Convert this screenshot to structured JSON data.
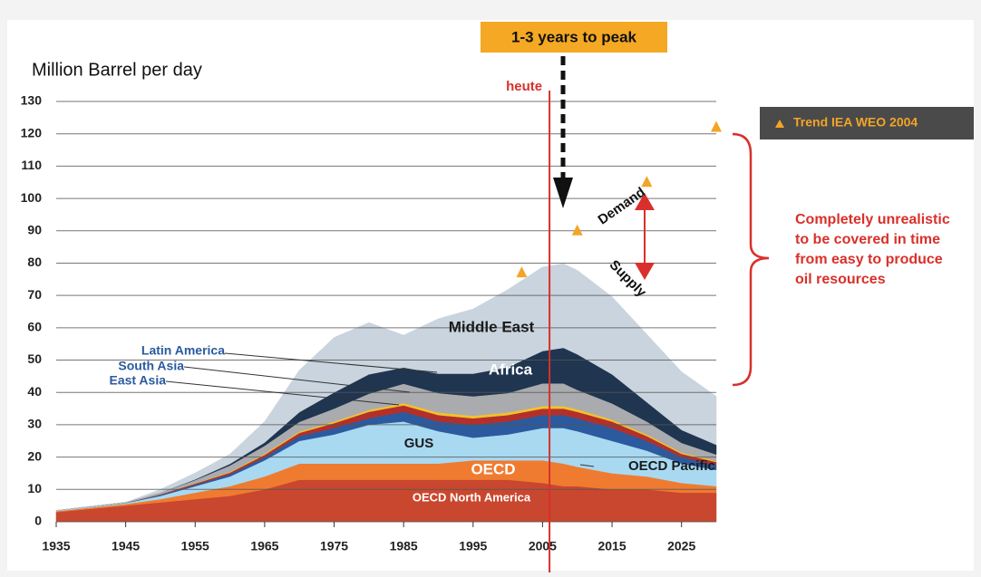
{
  "chart_data": {
    "type": "stacked-area",
    "y_label": "Million Barrel per day",
    "x": [
      1935,
      1945,
      1950,
      1955,
      1960,
      1965,
      1970,
      1975,
      1980,
      1985,
      1990,
      1995,
      2000,
      2005,
      2008,
      2010,
      2015,
      2020,
      2025,
      2030
    ],
    "series": [
      {
        "name": "OECD North America",
        "color": "#c9472e",
        "values": [
          3,
          5,
          6,
          7,
          8,
          10,
          13,
          13,
          13,
          13,
          13,
          13,
          13,
          12,
          11,
          11,
          10,
          10,
          9,
          9
        ]
      },
      {
        "name": "OECD",
        "color": "#ef7b31",
        "values": [
          0.3,
          0.5,
          1,
          2,
          3,
          4,
          5,
          5,
          5,
          5,
          5,
          6,
          6,
          7,
          7,
          6,
          5,
          4,
          3,
          2
        ]
      },
      {
        "name": "GUS",
        "color": "#a8d9f1",
        "values": [
          0.2,
          0.3,
          1,
          2,
          3,
          5,
          7,
          9,
          12,
          13,
          10,
          7,
          8,
          10,
          11,
          11,
          10,
          8,
          6,
          5
        ]
      },
      {
        "name": "OECD Pacific",
        "color": "#2b5a9f",
        "values": [
          0,
          0.1,
          0.3,
          0.5,
          0.7,
          1,
          1.5,
          2,
          2,
          3,
          3,
          4,
          4,
          4,
          4,
          4,
          4,
          3,
          2,
          1.5
        ]
      },
      {
        "name": "East Asia",
        "color": "#b3302a",
        "values": [
          0,
          0,
          0.2,
          0.3,
          0.5,
          0.7,
          1,
          1.5,
          2,
          2,
          2,
          2,
          2,
          2,
          2,
          2,
          2,
          1.5,
          1,
          1
        ]
      },
      {
        "name": "South Asia",
        "color": "#f2c22a",
        "values": [
          0,
          0,
          0,
          0.1,
          0.2,
          0.3,
          0.4,
          0.5,
          0.6,
          0.7,
          0.8,
          0.8,
          0.8,
          0.8,
          0.8,
          0.8,
          0.6,
          0.5,
          0.4,
          0.3
        ]
      },
      {
        "name": "Latin America",
        "color": "#a9abae",
        "values": [
          0,
          0.1,
          0.5,
          1,
          2,
          2.5,
          3,
          4,
          5,
          6,
          6,
          6,
          6,
          7,
          7,
          6,
          5,
          4,
          3,
          2
        ]
      },
      {
        "name": "Africa",
        "color": "#1f3550",
        "values": [
          0,
          0,
          0,
          0.2,
          0.5,
          1,
          3,
          5,
          6,
          5,
          6,
          7,
          8,
          10,
          11,
          11,
          9,
          6,
          4,
          3
        ]
      },
      {
        "name": "Middle East",
        "color": "#c9d4de",
        "values": [
          0,
          0,
          1,
          2,
          3,
          6.5,
          13,
          17,
          16,
          10,
          17,
          20,
          24,
          26,
          26,
          26,
          24,
          21,
          18,
          15
        ]
      }
    ],
    "trend": {
      "name": "Trend IEA WEO 2004",
      "color": "#f2a527",
      "x": [
        2002,
        2010,
        2020,
        2030
      ],
      "values": [
        77,
        90,
        105,
        122
      ]
    },
    "xlim": [
      1935,
      2030
    ],
    "xticks": [
      1935,
      1945,
      1955,
      1965,
      1975,
      1985,
      1995,
      2005,
      2015,
      2025
    ],
    "ylim": [
      0,
      130
    ],
    "yticks": [
      0,
      10,
      20,
      30,
      40,
      50,
      60,
      70,
      80,
      90,
      100,
      110,
      120,
      130
    ],
    "grid": true,
    "peak_note": "1-3 years to peak",
    "today": {
      "text": "heute",
      "x": 2006
    },
    "demand": "Demand",
    "supply": "Supply",
    "note": [
      "Completely unrealistic",
      "to be covered in time",
      "from easy to produce",
      "oil resources"
    ]
  }
}
